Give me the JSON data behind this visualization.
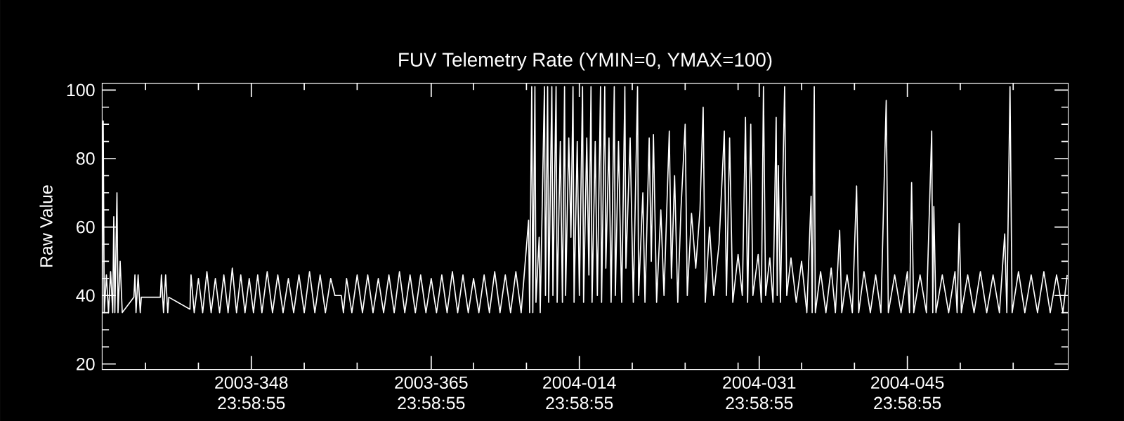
{
  "chart_data": {
    "type": "line",
    "title": "FUV Telemetry Rate (YMIN=0, YMAX=100)",
    "ylabel": "Raw Value",
    "xlim": [
      "2003-11-30T21:36",
      "2004-03-01T04:48"
    ],
    "ylim": [
      18.4,
      102
    ],
    "xticks": [
      {
        "value": "2003-12-04T23:59",
        "label": null
      },
      {
        "value": "2003-12-09T23:59",
        "label": null
      },
      {
        "value": "2003-12-14T23:59",
        "label": "2003-348 23:58:55"
      },
      {
        "value": "2003-12-19T23:59",
        "label": null
      },
      {
        "value": "2003-12-24T23:59",
        "label": null
      },
      {
        "value": "2003-12-31T23:59",
        "label": "2003-365 23:58:55"
      },
      {
        "value": "2004-01-04T23:59",
        "label": null
      },
      {
        "value": "2004-01-09T23:59",
        "label": null
      },
      {
        "value": "2004-01-14T23:59",
        "label": "2004-014 23:58:55"
      },
      {
        "value": "2004-01-19T23:59",
        "label": null
      },
      {
        "value": "2004-01-24T23:59",
        "label": null
      },
      {
        "value": "2004-01-29T23:59",
        "label": null
      },
      {
        "value": "2004-01-31T23:59",
        "label": "2004-031 23:58:55"
      },
      {
        "value": "2004-02-04T23:59",
        "label": null
      },
      {
        "value": "2004-02-09T23:59",
        "label": null
      },
      {
        "value": "2004-02-14T23:59",
        "label": "2004-045 23:58:55"
      },
      {
        "value": "2004-02-19T23:59",
        "label": null
      },
      {
        "value": "2004-02-24T23:59",
        "label": null
      }
    ],
    "yticks": [
      20,
      {
        "value": 25,
        "label": null
      },
      {
        "value": 30,
        "label": null
      },
      {
        "value": 35,
        "label": null
      },
      40,
      {
        "value": 45,
        "label": null
      },
      {
        "value": 50,
        "label": null
      },
      {
        "value": 55,
        "label": null
      },
      60,
      {
        "value": 65,
        "label": null
      },
      {
        "value": 70,
        "label": null
      },
      {
        "value": 75,
        "label": null
      },
      80,
      {
        "value": 85,
        "label": null
      },
      {
        "value": 90,
        "label": null
      },
      {
        "value": 95,
        "label": null
      },
      100
    ],
    "x": [
      "2003-11-30T21:36",
      "2003-12-01T00:00",
      "2003-12-01T02:24",
      "2003-12-01T07:12",
      "2003-12-01T12:00",
      "2003-12-01T16:48",
      "2003-12-01T21:36",
      "2003-12-02T00:00",
      "2003-12-02T02:24",
      "2003-12-02T07:12",
      "2003-12-02T09:36",
      "2003-12-02T14:24",
      "2003-12-02T19:12",
      "2003-12-03T21:36",
      "2003-12-04T00:00",
      "2003-12-04T02:24",
      "2003-12-04T07:12",
      "2003-12-04T12:00",
      "2003-12-04T14:24",
      "2003-12-06T09:36",
      "2003-12-06T12:00",
      "2003-12-06T16:48",
      "2003-12-06T21:36",
      "2003-12-07T02:24",
      "2003-12-07T04:48",
      "2003-12-09T04:48",
      "2003-12-09T07:12",
      "2003-12-09T14:24",
      "2003-12-10T00:00",
      "2003-12-10T09:36",
      "2003-12-10T19:12",
      "2003-12-11T04:48",
      "2003-12-11T14:24",
      "2003-12-12T00:00",
      "2003-12-12T09:36",
      "2003-12-12T19:12",
      "2003-12-13T04:48",
      "2003-12-13T14:24",
      "2003-12-14T00:00",
      "2003-12-14T09:36",
      "2003-12-14T19:12",
      "2003-12-15T04:48",
      "2003-12-15T14:24",
      "2003-12-16T00:00",
      "2003-12-16T12:00",
      "2003-12-17T00:00",
      "2003-12-17T12:00",
      "2003-12-18T00:00",
      "2003-12-18T12:00",
      "2003-12-19T00:00",
      "2003-12-19T12:00",
      "2003-12-20T00:00",
      "2003-12-20T12:00",
      "2003-12-21T00:00",
      "2003-12-21T12:00",
      "2003-12-22T00:00",
      "2003-12-22T12:00",
      "2003-12-22T21:36",
      "2003-12-23T12:00",
      "2003-12-23T16:48",
      "2003-12-24T00:00",
      "2003-12-24T12:00",
      "2003-12-25T00:00",
      "2003-12-25T12:00",
      "2003-12-26T00:00",
      "2003-12-26T12:00",
      "2003-12-27T00:00",
      "2003-12-27T12:00",
      "2003-12-28T00:00",
      "2003-12-28T12:00",
      "2003-12-29T00:00",
      "2003-12-29T12:00",
      "2003-12-30T00:00",
      "2003-12-30T12:00",
      "2003-12-31T00:00",
      "2003-12-31T12:00",
      "2004-01-01T00:00",
      "2004-01-01T12:00",
      "2004-01-02T00:00",
      "2004-01-02T12:00",
      "2004-01-03T00:00",
      "2004-01-03T12:00",
      "2004-01-04T00:00",
      "2004-01-04T12:00",
      "2004-01-05T00:00",
      "2004-01-05T12:00",
      "2004-01-06T00:00",
      "2004-01-06T12:00",
      "2004-01-07T00:00",
      "2004-01-07T12:00",
      "2004-01-08T00:00",
      "2004-01-08T12:00",
      "2004-01-09T00:00",
      "2004-01-09T12:00",
      "2004-01-10T04:48",
      "2004-01-10T07:12",
      "2004-01-10T12:00",
      "2004-01-10T14:24",
      "2004-01-10T19:12",
      "2004-01-10T21:36",
      "2004-01-11T04:48",
      "2004-01-11T07:12",
      "2004-01-11T16:48",
      "2004-01-11T19:12",
      "2004-01-12T00:00",
      "2004-01-12T02:24",
      "2004-01-12T09:36",
      "2004-01-12T12:00",
      "2004-01-12T19:12",
      "2004-01-12T21:36",
      "2004-01-13T04:48",
      "2004-01-13T09:36",
      "2004-01-13T14:24",
      "2004-01-13T16:48",
      "2004-01-14T00:00",
      "2004-01-14T04:48",
      "2004-01-14T09:36",
      "2004-01-14T12:00",
      "2004-01-14T19:12",
      "2004-01-15T00:00",
      "2004-01-15T07:12",
      "2004-01-15T09:36",
      "2004-01-15T16:48",
      "2004-01-15T21:36",
      "2004-01-16T02:24",
      "2004-01-16T04:48",
      "2004-01-16T12:00",
      "2004-01-16T16:48",
      "2004-01-17T00:00",
      "2004-01-17T02:24",
      "2004-01-17T09:36",
      "2004-01-17T12:00",
      "2004-01-17T19:12",
      "2004-01-18T00:00",
      "2004-01-18T07:12",
      "2004-01-18T09:36",
      "2004-01-18T16:48",
      "2004-01-19T00:00",
      "2004-01-19T07:12",
      "2004-01-19T09:36",
      "2004-01-19T19:12",
      "2004-01-20T02:24",
      "2004-01-20T12:00",
      "2004-01-20T14:24",
      "2004-01-21T00:00",
      "2004-01-21T04:48",
      "2004-01-21T14:24",
      "2004-01-21T19:12",
      "2004-01-22T00:00",
      "2004-01-22T07:12",
      "2004-01-22T16:48",
      "2004-01-23T00:00",
      "2004-01-23T12:00",
      "2004-01-23T16:48",
      "2004-01-24T00:00",
      "2004-01-24T07:12",
      "2004-01-24T14:24",
      "2004-01-25T00:00",
      "2004-01-25T04:48",
      "2004-01-25T14:24",
      "2004-01-26T00:00",
      "2004-01-26T09:36",
      "2004-01-26T16:48",
      "2004-01-26T21:36",
      "2004-01-27T07:12",
      "2004-01-27T16:48",
      "2004-01-28T04:48",
      "2004-01-28T16:48",
      "2004-01-28T21:36",
      "2004-01-29T04:48",
      "2004-01-29T12:00",
      "2004-01-30T00:00",
      "2004-01-30T09:36",
      "2004-01-30T16:48",
      "2004-01-30T21:36",
      "2004-01-31T04:48",
      "2004-01-31T09:36",
      "2004-01-31T21:36",
      "2004-02-01T04:48",
      "2004-02-01T09:36",
      "2004-02-01T14:24",
      "2004-02-02T00:00",
      "2004-02-02T07:12",
      "2004-02-02T14:24",
      "2004-02-02T16:48",
      "2004-02-02T19:12",
      "2004-02-03T00:00",
      "2004-02-03T09:36",
      "2004-02-03T14:24",
      "2004-02-04T00:00",
      "2004-02-04T12:00",
      "2004-02-05T00:00",
      "2004-02-05T12:00",
      "2004-02-05T21:36",
      "2004-02-06T00:00",
      "2004-02-06T04:48",
      "2004-02-06T07:12",
      "2004-02-06T19:12",
      "2004-02-07T07:12",
      "2004-02-07T19:12",
      "2004-02-08T04:48",
      "2004-02-08T14:24",
      "2004-02-08T19:12",
      "2004-02-09T07:12",
      "2004-02-09T19:12",
      "2004-02-10T04:48",
      "2004-02-10T09:36",
      "2004-02-10T21:36",
      "2004-02-11T12:00",
      "2004-02-12T00:00",
      "2004-02-12T12:00",
      "2004-02-13T00:00",
      "2004-02-13T04:48",
      "2004-02-13T19:12",
      "2004-02-14T09:36",
      "2004-02-15T00:00",
      "2004-02-15T04:48",
      "2004-02-15T09:36",
      "2004-02-15T14:24",
      "2004-02-16T04:48",
      "2004-02-16T19:12",
      "2004-02-17T07:12",
      "2004-02-17T09:36",
      "2004-02-17T12:00",
      "2004-02-17T16:48",
      "2004-02-18T07:12",
      "2004-02-18T21:36",
      "2004-02-19T12:00",
      "2004-02-19T16:48",
      "2004-02-19T21:36",
      "2004-02-20T02:24",
      "2004-02-20T16:48",
      "2004-02-21T07:12",
      "2004-02-21T21:36",
      "2004-02-22T12:00",
      "2004-02-23T02:24",
      "2004-02-23T16:48",
      "2004-02-24T04:48",
      "2004-02-24T09:36",
      "2004-02-24T16:48",
      "2004-02-24T21:36",
      "2004-02-25T12:00",
      "2004-02-26T02:24",
      "2004-02-26T16:48",
      "2004-02-27T07:12",
      "2004-02-27T21:36",
      "2004-02-28T12:00",
      "2004-02-29T02:24",
      "2004-02-29T16:48",
      "2004-03-01T02:24"
    ],
    "series": [
      {
        "color": "#ffffff",
        "values": [
          35,
          91,
          35,
          46,
          35,
          47,
          35,
          63,
          35,
          70,
          35,
          50,
          35,
          39.5,
          46,
          35,
          46,
          35,
          39.5,
          39.5,
          46,
          35,
          46,
          35,
          39.5,
          36,
          46,
          35,
          45,
          35,
          47,
          35,
          45,
          35,
          46,
          35,
          48,
          35,
          46,
          35,
          45,
          35,
          46,
          35,
          47,
          35,
          46,
          35,
          45,
          35,
          46,
          35,
          47,
          35,
          46,
          35,
          45,
          40,
          40,
          35,
          45,
          35,
          46,
          35,
          46,
          35,
          45,
          35,
          46,
          35,
          47,
          35,
          46,
          35,
          46,
          35,
          45,
          35,
          46,
          35,
          47,
          35,
          46,
          35,
          45,
          35,
          46,
          35,
          47,
          35,
          46,
          35,
          47,
          35,
          62,
          35,
          101,
          35,
          101,
          38,
          57,
          35,
          101,
          40,
          101,
          38,
          101,
          40,
          101,
          38,
          85,
          38,
          101,
          40,
          86,
          57,
          101,
          38,
          85,
          40,
          101,
          38,
          86,
          46,
          101,
          38,
          85,
          40,
          101,
          38,
          101,
          48,
          86,
          38,
          101,
          40,
          85,
          38,
          101,
          48,
          86,
          38,
          101,
          40,
          70,
          38,
          86,
          50,
          87,
          38,
          65,
          40,
          88,
          45,
          75,
          38,
          65,
          90,
          40,
          64,
          48,
          65,
          95,
          38,
          60,
          40,
          55,
          88,
          40,
          86,
          38,
          52,
          40,
          92,
          38,
          90,
          40,
          52,
          38,
          101,
          40,
          51,
          38,
          92,
          40,
          78,
          38,
          101,
          40,
          51,
          38,
          50,
          35,
          69,
          35,
          101,
          35,
          47,
          35,
          48,
          35,
          59,
          35,
          46,
          35,
          72,
          35,
          47,
          35,
          46,
          35,
          97,
          35,
          46,
          35,
          47,
          35,
          73,
          35,
          46,
          35,
          88,
          35,
          66,
          35,
          46,
          35,
          47,
          35,
          61,
          35,
          46,
          35,
          47,
          35,
          46,
          35,
          58,
          35,
          101,
          35,
          47,
          35,
          46,
          35,
          47,
          35,
          46,
          35,
          46
        ]
      }
    ]
  }
}
